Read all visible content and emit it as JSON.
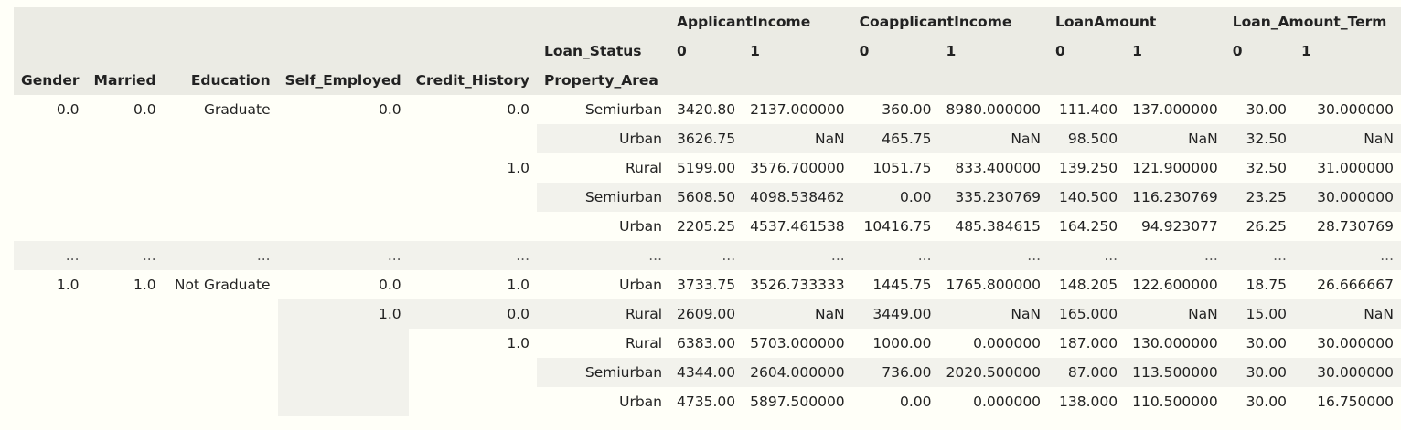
{
  "columns": {
    "top": [
      {
        "label": "ApplicantIncome"
      },
      {
        "label": "CoapplicantIncome"
      },
      {
        "label": "LoanAmount"
      },
      {
        "label": "Loan_Amount_Term"
      }
    ],
    "loan_status_label": "Loan_Status",
    "loan_status_values": [
      "0",
      "1",
      "0",
      "1",
      "0",
      "1",
      "0",
      "1"
    ],
    "index_names": [
      "Gender",
      "Married",
      "Education",
      "Self_Employed",
      "Credit_History",
      "Property_Area"
    ]
  },
  "rows": [
    {
      "idx": [
        "0.0",
        "0.0",
        "Graduate",
        "0.0",
        "0.0",
        "Semiurban"
      ],
      "values": [
        "3420.80",
        "2137.000000",
        "360.00",
        "8980.000000",
        "111.400",
        "137.000000",
        "30.00",
        "30.000000"
      ]
    },
    {
      "idx": [
        "",
        "",
        "",
        "",
        "",
        "Urban"
      ],
      "values": [
        "3626.75",
        "NaN",
        "465.75",
        "NaN",
        "98.500",
        "NaN",
        "32.50",
        "NaN"
      ]
    },
    {
      "idx": [
        "",
        "",
        "",
        "",
        "1.0",
        "Rural"
      ],
      "values": [
        "5199.00",
        "3576.700000",
        "1051.75",
        "833.400000",
        "139.250",
        "121.900000",
        "32.50",
        "31.000000"
      ]
    },
    {
      "idx": [
        "",
        "",
        "",
        "",
        "",
        "Semiurban"
      ],
      "values": [
        "5608.50",
        "4098.538462",
        "0.00",
        "335.230769",
        "140.500",
        "116.230769",
        "23.25",
        "30.000000"
      ]
    },
    {
      "idx": [
        "",
        "",
        "",
        "",
        "",
        "Urban"
      ],
      "values": [
        "2205.25",
        "4537.461538",
        "10416.75",
        "485.384615",
        "164.250",
        "94.923077",
        "26.25",
        "28.730769"
      ]
    },
    {
      "idx": [
        "...",
        "...",
        "...",
        "...",
        "...",
        "..."
      ],
      "values": [
        "...",
        "...",
        "...",
        "...",
        "...",
        "...",
        "...",
        "..."
      ]
    },
    {
      "idx": [
        "1.0",
        "1.0",
        "Not Graduate",
        "0.0",
        "1.0",
        "Urban"
      ],
      "values": [
        "3733.75",
        "3526.733333",
        "1445.75",
        "1765.800000",
        "148.205",
        "122.600000",
        "18.75",
        "26.666667"
      ]
    },
    {
      "idx": [
        "",
        "",
        "",
        "1.0",
        "0.0",
        "Rural"
      ],
      "values": [
        "2609.00",
        "NaN",
        "3449.00",
        "NaN",
        "165.000",
        "NaN",
        "15.00",
        "NaN"
      ]
    },
    {
      "idx": [
        "",
        "",
        "",
        "",
        "1.0",
        "Rural"
      ],
      "values": [
        "6383.00",
        "5703.000000",
        "1000.00",
        "0.000000",
        "187.000",
        "130.000000",
        "30.00",
        "30.000000"
      ]
    },
    {
      "idx": [
        "",
        "",
        "",
        "",
        "",
        "Semiurban"
      ],
      "values": [
        "4344.00",
        "2604.000000",
        "736.00",
        "2020.500000",
        "87.000",
        "113.500000",
        "30.00",
        "30.000000"
      ]
    },
    {
      "idx": [
        "",
        "",
        "",
        "",
        "",
        "Urban"
      ],
      "values": [
        "4735.00",
        "5897.500000",
        "0.00",
        "0.000000",
        "138.000",
        "110.500000",
        "30.00",
        "16.750000"
      ]
    }
  ]
}
